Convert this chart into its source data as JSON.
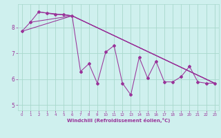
{
  "xlabel": "Windchill (Refroidissement éolien,°C)",
  "background_color": "#cff0ee",
  "grid_color": "#a8d8cc",
  "line_color": "#993399",
  "xlim": [
    -0.5,
    23.5
  ],
  "ylim": [
    4.8,
    8.9
  ],
  "yticks": [
    5,
    6,
    7,
    8
  ],
  "xticks": [
    0,
    1,
    2,
    3,
    4,
    5,
    6,
    7,
    8,
    9,
    10,
    11,
    12,
    13,
    14,
    15,
    16,
    17,
    18,
    19,
    20,
    21,
    22,
    23
  ],
  "series1_x": [
    0,
    1,
    2,
    3,
    4,
    5,
    6,
    7,
    8,
    9,
    10,
    11,
    12,
    13,
    14,
    15,
    16,
    17,
    18,
    19,
    20,
    21,
    22,
    23
  ],
  "series1_y": [
    7.85,
    8.2,
    8.6,
    8.55,
    8.5,
    8.5,
    8.45,
    6.3,
    6.6,
    5.85,
    7.05,
    7.3,
    5.85,
    5.4,
    6.85,
    6.05,
    6.7,
    5.9,
    5.9,
    6.1,
    6.5,
    5.9,
    5.85,
    5.85
  ],
  "series2_x": [
    0,
    6,
    23
  ],
  "series2_y": [
    7.85,
    8.45,
    5.85
  ],
  "series3_x": [
    2,
    6,
    23
  ],
  "series3_y": [
    8.6,
    8.45,
    5.85
  ],
  "series4_x": [
    1,
    6,
    23
  ],
  "series4_y": [
    8.2,
    8.45,
    5.85
  ],
  "series5_x": [
    3,
    6,
    23
  ],
  "series5_y": [
    8.55,
    8.45,
    5.85
  ]
}
